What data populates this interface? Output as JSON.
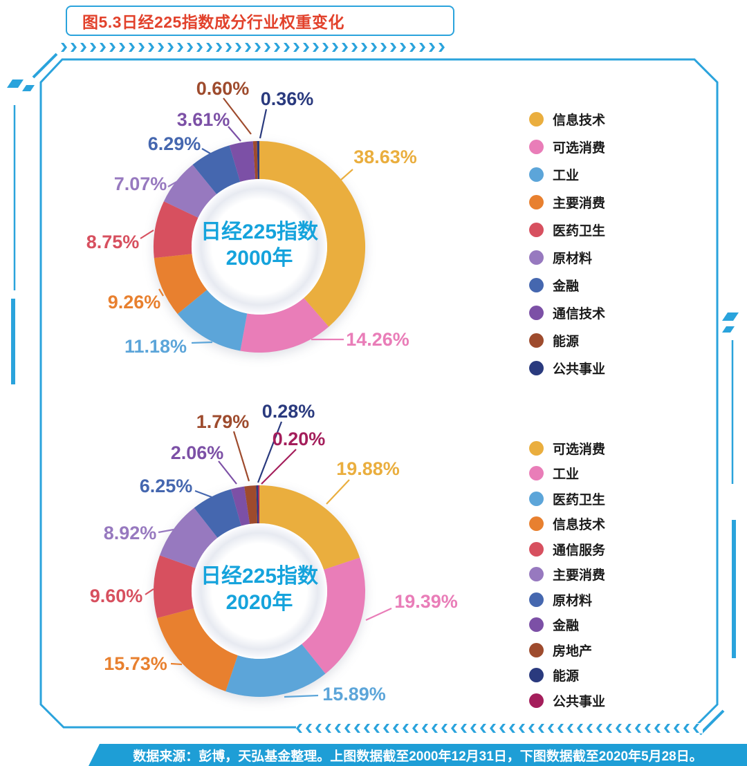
{
  "page": {
    "title": "图5.3日经225指数成分行业权重变化",
    "footer": "数据来源：彭博，天弘基金整理。上图数据截至2000年12月31日，下图数据截至2020年5月28日。"
  },
  "colors": {
    "frame": "#2AA3DC",
    "title_text": "#E2412B",
    "footer_bg": "#1E9ED6",
    "center_text": "#15A3DC",
    "legend_text": "#1a1a1a"
  },
  "chart_data": [
    {
      "type": "pie",
      "subtype": "donut",
      "title": "日经225指数 2000年",
      "center_lines": [
        "日经225指数",
        "2000年"
      ],
      "legend_position": "right",
      "label_format": "percent",
      "segments": [
        {
          "label": "信息技术",
          "value": 38.63,
          "color": "#EAAE3E"
        },
        {
          "label": "可选消费",
          "value": 14.26,
          "color": "#E97DB8"
        },
        {
          "label": "工业",
          "value": 11.18,
          "color": "#5CA5D9"
        },
        {
          "label": "主要消费",
          "value": 9.26,
          "color": "#E8802F"
        },
        {
          "label": "医药卫生",
          "value": 8.75,
          "color": "#D7505F"
        },
        {
          "label": "原材料",
          "value": 7.07,
          "color": "#9779BF"
        },
        {
          "label": "金融",
          "value": 6.29,
          "color": "#4567AF"
        },
        {
          "label": "通信技术",
          "value": 3.61,
          "color": "#7C50A6"
        },
        {
          "label": "能源",
          "value": 0.6,
          "color": "#9E4B2D"
        },
        {
          "label": "公共事业",
          "value": 0.36,
          "color": "#2A3A7E"
        }
      ]
    },
    {
      "type": "pie",
      "subtype": "donut",
      "title": "日经225指数 2020年",
      "center_lines": [
        "日经225指数",
        "2020年"
      ],
      "legend_position": "right",
      "label_format": "percent",
      "segments": [
        {
          "label": "可选消费",
          "value": 19.88,
          "color": "#EAAE3E"
        },
        {
          "label": "工业",
          "value": 19.39,
          "color": "#E97DB8"
        },
        {
          "label": "医药卫生",
          "value": 15.89,
          "color": "#5CA5D9"
        },
        {
          "label": "信息技术",
          "value": 15.73,
          "color": "#E8802F"
        },
        {
          "label": "通信服务",
          "value": 9.6,
          "color": "#D7505F"
        },
        {
          "label": "主要消费",
          "value": 8.92,
          "color": "#9779BF"
        },
        {
          "label": "原材料",
          "value": 6.25,
          "color": "#4567AF"
        },
        {
          "label": "金融",
          "value": 2.06,
          "color": "#7C50A6"
        },
        {
          "label": "房地产",
          "value": 1.79,
          "color": "#9E4B2D"
        },
        {
          "label": "能源",
          "value": 0.28,
          "color": "#2A3A7E"
        },
        {
          "label": "公共事业",
          "value": 0.2,
          "color": "#A41E5B"
        }
      ]
    }
  ]
}
